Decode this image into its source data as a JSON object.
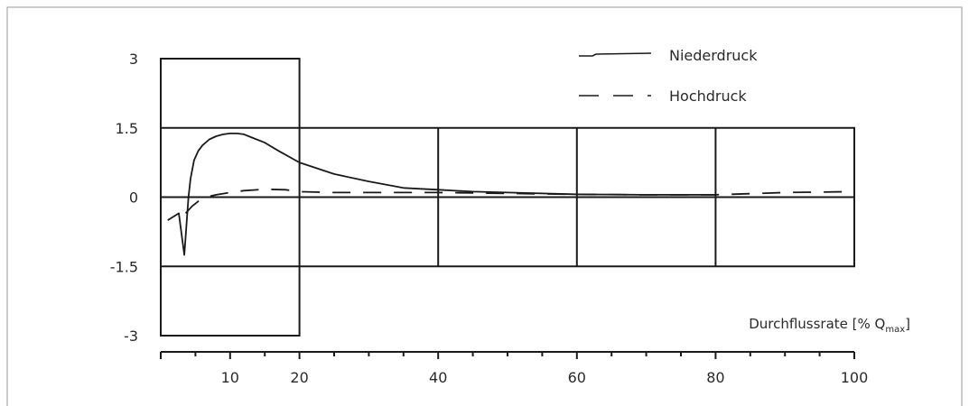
{
  "chart_data": {
    "type": "line",
    "title": "",
    "xlabel": "Durchflussrate [% Q",
    "xlabel_subscript": "max",
    "xlabel_suffix": "]",
    "ylabel": "",
    "xlim": [
      0,
      100
    ],
    "ylim": [
      -3,
      3
    ],
    "x_ticks": [
      10,
      20,
      40,
      60,
      80,
      100
    ],
    "y_ticks": [
      3,
      1.5,
      0,
      -1.5,
      -3
    ],
    "x_tick_labels": [
      "10",
      "20",
      "40",
      "60",
      "80",
      "100"
    ],
    "y_tick_labels": [
      "3",
      "1.5",
      "0",
      "-1.5",
      "-3"
    ],
    "grid": true,
    "legend_position": "top-right",
    "series": [
      {
        "name": "Niederdruck",
        "style": "solid",
        "x": [
          1,
          2.6,
          3.4,
          4,
          4.3,
          4.8,
          5.4,
          6,
          7,
          8,
          9,
          10,
          11,
          12,
          13,
          15,
          17,
          20,
          25,
          30,
          35,
          40,
          45,
          50,
          60,
          70,
          80
        ],
        "y": [
          -0.5,
          -0.35,
          -1.25,
          0,
          0.4,
          0.8,
          1.0,
          1.12,
          1.25,
          1.32,
          1.36,
          1.38,
          1.38,
          1.36,
          1.3,
          1.18,
          1.0,
          0.75,
          0.5,
          0.34,
          0.2,
          0.16,
          0.12,
          0.1,
          0.06,
          0.05,
          0.05
        ]
      },
      {
        "name": "Hochdruck",
        "style": "dashed",
        "x": [
          3.6,
          4.5,
          5.5,
          6.5,
          8,
          10,
          12,
          15,
          18,
          20,
          25,
          30,
          40,
          50,
          60,
          70,
          80,
          90,
          100
        ],
        "y": [
          -0.35,
          -0.2,
          -0.08,
          0,
          0.05,
          0.1,
          0.14,
          0.17,
          0.16,
          0.12,
          0.1,
          0.1,
          0.1,
          0.08,
          0.06,
          0.05,
          0.05,
          0.1,
          0.12
        ]
      }
    ]
  }
}
